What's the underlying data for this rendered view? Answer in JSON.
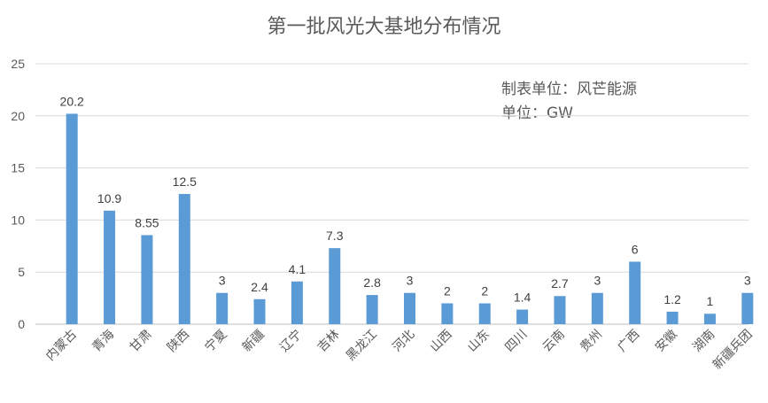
{
  "chart_data": {
    "type": "bar",
    "title": "第一批风光大基地分布情况",
    "annotations": [
      "制表单位：风芒能源",
      "单位：GW"
    ],
    "categories": [
      "内蒙古",
      "青海",
      "甘肃",
      "陕西",
      "宁夏",
      "新疆",
      "辽宁",
      "吉林",
      "黑龙江",
      "河北",
      "山西",
      "山东",
      "四川",
      "云南",
      "贵州",
      "广西",
      "安徽",
      "湖南",
      "新疆兵团"
    ],
    "values": [
      20.2,
      10.9,
      8.55,
      12.5,
      3,
      2.4,
      4.1,
      7.3,
      2.8,
      3,
      2,
      2,
      1.4,
      2.7,
      3,
      6,
      1.2,
      1,
      3
    ],
    "value_labels": [
      "20.2",
      "10.9",
      "8.55",
      "12.5",
      "3",
      "2.4",
      "4.1",
      "7.3",
      "2.8",
      "3",
      "2",
      "2",
      "1.4",
      "2.7",
      "3",
      "6",
      "1.2",
      "1",
      "3"
    ],
    "ylim": [
      0,
      25
    ],
    "yticks": [
      "0",
      "5",
      "10",
      "15",
      "20",
      "25"
    ],
    "grid": true,
    "colors": {
      "bar": "#5b9bd5",
      "grid": "#d9d9d9",
      "text": "#595959"
    }
  }
}
